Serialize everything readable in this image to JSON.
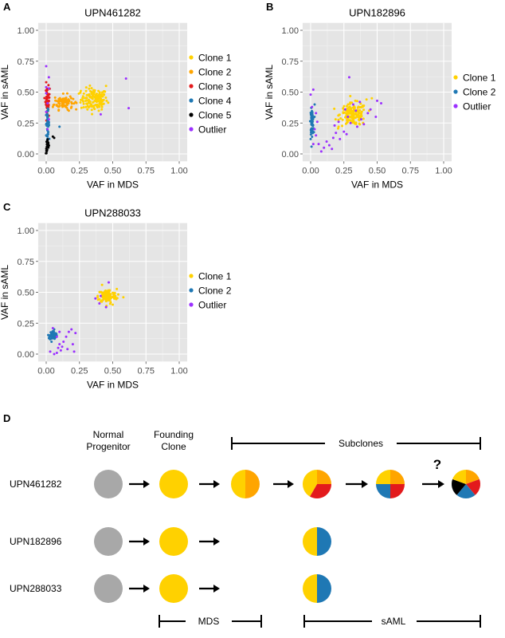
{
  "panel_labels": {
    "a": "A",
    "b": "B",
    "c": "C",
    "d": "D"
  },
  "colors": {
    "clone1": "#FFD100",
    "clone2": "#FFA500",
    "clone3": "#E31A1C",
    "clone4": "#1F78B4",
    "clone5": "#000000",
    "outlier": "#9B30FF",
    "normal": "#A8A8A8",
    "panel_bg": "#E5E5E5",
    "grid": "#FFFFFF"
  },
  "chart_data": [
    {
      "type": "scatter",
      "title": "UPN461282",
      "xlabel": "VAF in MDS",
      "ylabel": "VAF in sAML",
      "xlim": [
        0,
        1
      ],
      "ylim": [
        0,
        1
      ],
      "xticks": [
        "0.00",
        "0.25",
        "0.50",
        "0.75",
        "1.00"
      ],
      "yticks": [
        "0.00",
        "0.25",
        "0.50",
        "0.75",
        "1.00"
      ],
      "grid": true,
      "legend": "right",
      "series": [
        {
          "name": "Clone 1",
          "color": "#FFD100",
          "cluster": {
            "cx": 0.36,
            "cy": 0.44,
            "sx": 0.05,
            "sy": 0.045,
            "n": 140
          },
          "points": [
            [
              0.45,
              0.55
            ],
            [
              0.26,
              0.51
            ],
            [
              0.42,
              0.38
            ],
            [
              0.31,
              0.36
            ]
          ]
        },
        {
          "name": "Clone 2",
          "color": "#FFA500",
          "cluster": {
            "cx": 0.13,
            "cy": 0.42,
            "sx": 0.035,
            "sy": 0.03,
            "n": 90
          },
          "points": [
            [
              0.22,
              0.42
            ],
            [
              0.05,
              0.38
            ],
            [
              0.17,
              0.35
            ]
          ]
        },
        {
          "name": "Clone 3",
          "color": "#E31A1C",
          "cluster": {
            "cx": 0.01,
            "cy": 0.44,
            "sx": 0.008,
            "sy": 0.05,
            "n": 45
          },
          "points": [
            [
              0.0,
              0.58
            ],
            [
              0.02,
              0.31
            ]
          ]
        },
        {
          "name": "Clone 4",
          "color": "#1F78B4",
          "cluster": {
            "cx": 0.01,
            "cy": 0.25,
            "sx": 0.006,
            "sy": 0.05,
            "n": 40
          },
          "points": [
            [
              0.1,
              0.22
            ],
            [
              0.0,
              0.15
            ]
          ]
        },
        {
          "name": "Clone 5",
          "color": "#000000",
          "cluster": {
            "cx": 0.01,
            "cy": 0.06,
            "sx": 0.006,
            "sy": 0.03,
            "n": 25
          },
          "points": [
            [
              0.05,
              0.14
            ],
            [
              0.06,
              0.13
            ]
          ]
        },
        {
          "name": "Outlier",
          "color": "#9B30FF",
          "cluster": null,
          "points": [
            [
              0.0,
              0.71
            ],
            [
              0.02,
              0.62
            ],
            [
              0.6,
              0.61
            ],
            [
              0.0,
              0.54
            ],
            [
              0.02,
              0.53
            ],
            [
              0.0,
              0.49
            ],
            [
              0.62,
              0.37
            ],
            [
              0.41,
              0.32
            ],
            [
              0.01,
              0.41
            ],
            [
              0.0,
              0.34
            ],
            [
              0.02,
              0.28
            ],
            [
              0.01,
              0.2
            ]
          ]
        }
      ]
    },
    {
      "type": "scatter",
      "title": "UPN182896",
      "xlabel": "VAF in MDS",
      "ylabel": "VAF in sAML",
      "xlim": [
        0,
        1
      ],
      "ylim": [
        0,
        1
      ],
      "xticks": [
        "0.00",
        "0.25",
        "0.50",
        "0.75",
        "1.00"
      ],
      "yticks": [
        "0.00",
        "0.25",
        "0.50",
        "0.75",
        "1.00"
      ],
      "grid": true,
      "legend": "right",
      "series": [
        {
          "name": "Clone 1",
          "color": "#FFD100",
          "cluster": {
            "cx": 0.32,
            "cy": 0.32,
            "sx": 0.05,
            "sy": 0.045,
            "n": 160
          },
          "points": [
            [
              0.46,
              0.45
            ],
            [
              0.21,
              0.22
            ],
            [
              0.42,
              0.44
            ]
          ]
        },
        {
          "name": "Clone 2",
          "color": "#1F78B4",
          "cluster": {
            "cx": 0.01,
            "cy": 0.26,
            "sx": 0.006,
            "sy": 0.05,
            "n": 60
          },
          "points": [
            [
              0.03,
              0.4
            ],
            [
              0.0,
              0.12
            ]
          ]
        },
        {
          "name": "Outlier",
          "color": "#9B30FF",
          "cluster": null,
          "points": [
            [
              0.29,
              0.62
            ],
            [
              0.0,
              0.48
            ],
            [
              0.02,
              0.52
            ],
            [
              0.01,
              0.38
            ],
            [
              0.04,
              0.33
            ],
            [
              0.03,
              0.2
            ],
            [
              0.04,
              0.15
            ],
            [
              0.06,
              0.08
            ],
            [
              0.1,
              0.05
            ],
            [
              0.12,
              0.1
            ],
            [
              0.14,
              0.07
            ],
            [
              0.17,
              0.13
            ],
            [
              0.19,
              0.17
            ],
            [
              0.08,
              0.02
            ],
            [
              0.16,
              0.04
            ],
            [
              0.22,
              0.12
            ],
            [
              0.25,
              0.18
            ],
            [
              0.27,
              0.16
            ],
            [
              0.21,
              0.26
            ],
            [
              0.3,
              0.25
            ],
            [
              0.35,
              0.22
            ],
            [
              0.4,
              0.24
            ],
            [
              0.45,
              0.36
            ],
            [
              0.5,
              0.43
            ],
            [
              0.53,
              0.41
            ],
            [
              0.49,
              0.3
            ],
            [
              0.37,
              0.42
            ],
            [
              0.43,
              0.33
            ],
            [
              0.26,
              0.36
            ],
            [
              0.32,
              0.4
            ],
            [
              0.38,
              0.28
            ],
            [
              0.05,
              0.26
            ],
            [
              0.02,
              0.08
            ],
            [
              0.18,
              0.23
            ],
            [
              0.28,
              0.3
            ],
            [
              0.34,
              0.35
            ]
          ]
        }
      ]
    },
    {
      "type": "scatter",
      "title": "UPN288033",
      "xlabel": "VAF in MDS",
      "ylabel": "VAF in sAML",
      "xlim": [
        0,
        1
      ],
      "ylim": [
        0,
        1
      ],
      "xticks": [
        "0.00",
        "0.25",
        "0.50",
        "0.75",
        "1.00"
      ],
      "yticks": [
        "0.00",
        "0.25",
        "0.50",
        "0.75",
        "1.00"
      ],
      "grid": true,
      "legend": "right",
      "series": [
        {
          "name": "Clone 1",
          "color": "#FFD100",
          "cluster": {
            "cx": 0.46,
            "cy": 0.47,
            "sx": 0.035,
            "sy": 0.028,
            "n": 110
          },
          "points": [
            [
              0.42,
              0.56
            ],
            [
              0.58,
              0.46
            ],
            [
              0.39,
              0.44
            ],
            [
              0.5,
              0.4
            ]
          ]
        },
        {
          "name": "Clone 2",
          "color": "#1F78B4",
          "cluster": {
            "cx": 0.05,
            "cy": 0.15,
            "sx": 0.012,
            "sy": 0.018,
            "n": 45
          },
          "points": [
            [
              0.06,
              0.2
            ],
            [
              0.04,
              0.1
            ]
          ]
        },
        {
          "name": "Outlier",
          "color": "#9B30FF",
          "cluster": null,
          "points": [
            [
              0.47,
              0.58
            ],
            [
              0.41,
              0.47
            ],
            [
              0.4,
              0.41
            ],
            [
              0.37,
              0.45
            ],
            [
              0.45,
              0.38
            ],
            [
              0.03,
              0.02
            ],
            [
              0.06,
              0.0
            ],
            [
              0.09,
              0.05
            ],
            [
              0.08,
              0.01
            ],
            [
              0.1,
              0.08
            ],
            [
              0.13,
              0.1
            ],
            [
              0.12,
              0.06
            ],
            [
              0.15,
              0.14
            ],
            [
              0.17,
              0.18
            ],
            [
              0.19,
              0.2
            ],
            [
              0.2,
              0.08
            ],
            [
              0.21,
              0.02
            ],
            [
              0.22,
              0.17
            ],
            [
              0.1,
              0.18
            ],
            [
              0.08,
              0.14
            ],
            [
              0.11,
              0.03
            ],
            [
              0.16,
              0.04
            ],
            [
              0.05,
              0.21
            ]
          ]
        }
      ]
    }
  ],
  "diagram": {
    "col_normal": "Normal\nProgenitor",
    "col_founding": "Founding\nClone",
    "col_subclones": "Subclones",
    "question": "?",
    "bottom_mds": "MDS",
    "bottom_saml": "sAML",
    "rows": [
      {
        "label": "UPN461282"
      },
      {
        "label": "UPN182896"
      },
      {
        "label": "UPN288033"
      }
    ]
  }
}
